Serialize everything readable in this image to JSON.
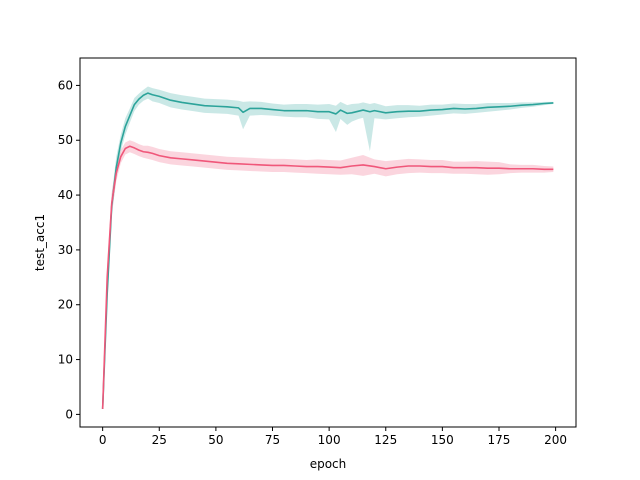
{
  "chart_data": {
    "type": "line",
    "title": "",
    "xlabel": "epoch",
    "ylabel": "test_acc1",
    "xlim": [
      -10,
      209
    ],
    "ylim": [
      -2.3,
      65
    ],
    "x_ticks": [
      0,
      25,
      50,
      75,
      100,
      125,
      150,
      175,
      200
    ],
    "y_ticks": [
      0,
      10,
      20,
      30,
      40,
      50,
      60
    ],
    "grid": false,
    "legend": "none",
    "shaded_band": true,
    "series": [
      {
        "color": "#2ca39a",
        "band_color": "#2ca39a",
        "x": [
          0,
          2,
          4,
          6,
          8,
          10,
          12,
          14,
          16,
          18,
          20,
          22,
          25,
          30,
          35,
          40,
          45,
          50,
          55,
          60,
          62,
          65,
          70,
          75,
          80,
          85,
          90,
          95,
          100,
          103,
          105,
          108,
          110,
          113,
          115,
          118,
          120,
          125,
          130,
          135,
          140,
          145,
          150,
          155,
          160,
          165,
          170,
          175,
          180,
          185,
          190,
          195,
          199
        ],
        "y": [
          1.0,
          22.0,
          38.0,
          45.0,
          49.5,
          52.5,
          54.5,
          56.5,
          57.5,
          58.2,
          58.6,
          58.3,
          58.0,
          57.3,
          56.9,
          56.6,
          56.3,
          56.2,
          56.1,
          55.9,
          55.1,
          55.8,
          55.8,
          55.6,
          55.4,
          55.4,
          55.4,
          55.2,
          55.2,
          54.8,
          55.5,
          54.9,
          55.0,
          55.3,
          55.5,
          55.2,
          55.4,
          55.0,
          55.2,
          55.3,
          55.3,
          55.5,
          55.6,
          55.8,
          55.7,
          55.8,
          56.0,
          56.1,
          56.2,
          56.4,
          56.5,
          56.7,
          56.8
        ],
        "lower": [
          1.0,
          20.0,
          36.0,
          43.0,
          48.0,
          51.0,
          53.2,
          55.3,
          56.5,
          57.2,
          57.6,
          57.1,
          56.8,
          56.0,
          55.6,
          55.3,
          55.0,
          54.9,
          54.8,
          54.5,
          52.0,
          54.5,
          54.6,
          54.5,
          54.3,
          54.2,
          54.2,
          53.9,
          53.8,
          51.5,
          53.9,
          52.8,
          53.4,
          53.9,
          54.1,
          48.0,
          54.0,
          53.8,
          54.0,
          54.2,
          54.3,
          54.5,
          54.7,
          54.9,
          54.8,
          55.0,
          55.2,
          55.4,
          55.6,
          55.9,
          56.1,
          56.4,
          56.6
        ],
        "upper": [
          1.0,
          24.0,
          40.0,
          47.0,
          51.0,
          54.0,
          55.8,
          57.7,
          58.5,
          59.2,
          59.8,
          59.5,
          59.2,
          58.6,
          58.2,
          57.9,
          57.6,
          57.5,
          57.4,
          57.2,
          57.0,
          57.1,
          57.0,
          56.7,
          56.5,
          56.6,
          56.6,
          56.5,
          56.6,
          56.3,
          57.0,
          56.4,
          56.6,
          56.7,
          56.9,
          56.6,
          56.8,
          56.2,
          56.4,
          56.4,
          56.3,
          56.5,
          56.5,
          56.7,
          56.6,
          56.6,
          56.8,
          56.8,
          56.8,
          56.9,
          56.9,
          57.0,
          57.0
        ]
      },
      {
        "color": "#f0577a",
        "band_color": "#f0577a",
        "x": [
          0,
          2,
          4,
          6,
          8,
          10,
          12,
          14,
          16,
          18,
          20,
          22,
          25,
          30,
          35,
          40,
          45,
          50,
          55,
          60,
          65,
          70,
          75,
          80,
          85,
          90,
          95,
          100,
          105,
          110,
          115,
          120,
          125,
          130,
          135,
          140,
          145,
          150,
          155,
          160,
          165,
          170,
          175,
          180,
          185,
          190,
          195,
          199
        ],
        "y": [
          1.0,
          25.0,
          38.5,
          44.0,
          47.0,
          48.5,
          48.9,
          48.6,
          48.2,
          47.9,
          47.8,
          47.6,
          47.2,
          46.8,
          46.6,
          46.4,
          46.2,
          46.0,
          45.8,
          45.7,
          45.6,
          45.5,
          45.4,
          45.4,
          45.3,
          45.2,
          45.2,
          45.1,
          45.0,
          45.3,
          45.5,
          45.2,
          44.8,
          45.1,
          45.3,
          45.3,
          45.2,
          45.2,
          45.0,
          45.0,
          45.0,
          44.9,
          44.9,
          44.8,
          44.8,
          44.8,
          44.7,
          44.7
        ],
        "lower": [
          1.0,
          23.0,
          36.5,
          42.5,
          45.8,
          47.4,
          47.8,
          47.5,
          47.1,
          46.8,
          46.6,
          46.4,
          46.0,
          45.6,
          45.4,
          45.2,
          45.0,
          44.8,
          44.6,
          44.5,
          44.4,
          44.3,
          44.2,
          44.2,
          44.1,
          44.0,
          43.9,
          43.8,
          43.7,
          43.8,
          43.5,
          43.9,
          43.4,
          43.8,
          44.0,
          44.1,
          44.0,
          44.0,
          43.9,
          43.9,
          43.8,
          43.7,
          43.8,
          44.0,
          44.1,
          44.1,
          44.1,
          44.2
        ],
        "upper": [
          1.0,
          27.0,
          40.5,
          45.5,
          48.2,
          49.6,
          50.0,
          49.7,
          49.3,
          49.0,
          49.0,
          48.8,
          48.4,
          48.0,
          47.8,
          47.6,
          47.4,
          47.2,
          47.0,
          46.9,
          46.8,
          46.7,
          46.6,
          46.6,
          46.5,
          46.4,
          46.5,
          46.4,
          46.3,
          46.8,
          47.3,
          46.5,
          46.2,
          46.4,
          46.6,
          46.5,
          46.4,
          46.4,
          46.1,
          46.1,
          46.2,
          46.1,
          46.0,
          45.6,
          45.5,
          45.5,
          45.3,
          45.2
        ]
      }
    ]
  }
}
